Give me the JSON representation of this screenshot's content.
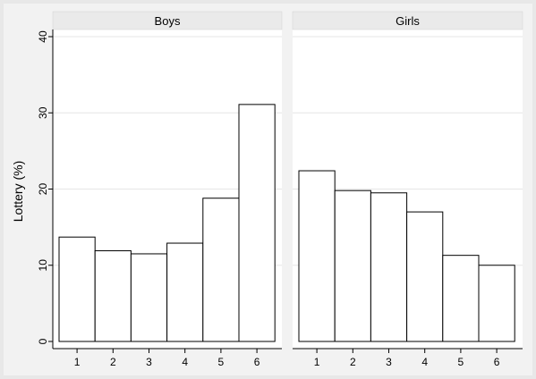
{
  "chart_data": {
    "type": "bar",
    "ylabel": "Lottery (%)",
    "xlabel": "",
    "ylim": [
      0,
      40
    ],
    "yticks": [
      0,
      10,
      20,
      30,
      40
    ],
    "grid": true,
    "categories": [
      "1",
      "2",
      "3",
      "4",
      "5",
      "6"
    ],
    "panels": [
      {
        "name": "Boys",
        "values": [
          13.7,
          11.9,
          11.5,
          12.9,
          18.8,
          31.1
        ]
      },
      {
        "name": "Girls",
        "values": [
          22.4,
          19.8,
          19.5,
          17.0,
          11.3,
          10.0
        ]
      }
    ],
    "colors": {
      "background": "#e8e8e8",
      "plot": "#ffffff",
      "strip": "#eaeaea",
      "bar_fill": "#ffffff",
      "bar_stroke": "#000000",
      "grid": "#e6e6e6"
    }
  }
}
